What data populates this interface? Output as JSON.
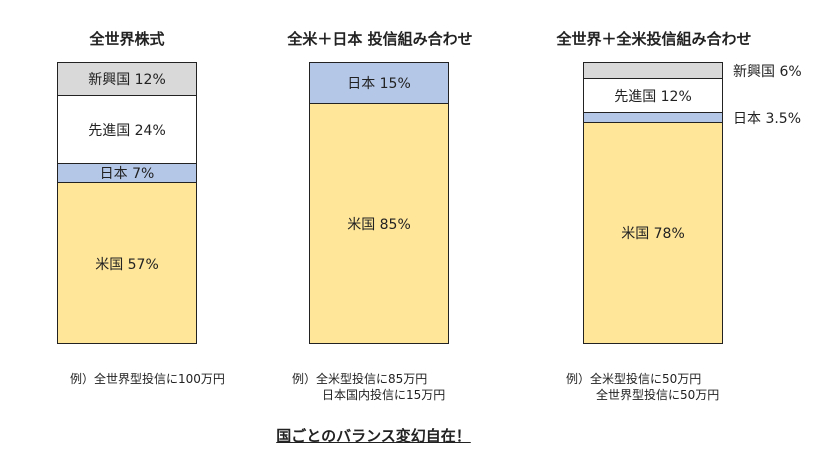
{
  "chart_data": [
    {
      "type": "bar",
      "title": "全世界株式",
      "stacked": true,
      "unit": "%",
      "series": [
        {
          "name": "米国",
          "value": 57,
          "label": "米国 57%",
          "color": "#ffe699"
        },
        {
          "name": "日本",
          "value": 7,
          "label": "日本 7%",
          "color": "#b4c7e7"
        },
        {
          "name": "先進国",
          "value": 24,
          "label": "先進国 24%",
          "color": "#ffffff"
        },
        {
          "name": "新興国",
          "value": 12,
          "label": "新興国 12%",
          "color": "#d9d9d9"
        }
      ],
      "example": [
        "例）全世界型投信に100万円"
      ]
    },
    {
      "type": "bar",
      "title": "全米＋日本 投信組み合わせ",
      "stacked": true,
      "unit": "%",
      "series": [
        {
          "name": "米国",
          "value": 85,
          "label": "米国 85%",
          "color": "#ffe699"
        },
        {
          "name": "日本",
          "value": 15,
          "label": "日本 15%",
          "color": "#b4c7e7"
        }
      ],
      "example": [
        "例）全米型投信に85万円",
        "日本国内投信に15万円"
      ]
    },
    {
      "type": "bar",
      "title": "全世界＋全米投信組み合わせ",
      "stacked": true,
      "unit": "%",
      "series": [
        {
          "name": "米国",
          "value": 78,
          "label": "米国 78%",
          "color": "#ffe699"
        },
        {
          "name": "日本",
          "value": 3.5,
          "label": "日本 3.5%",
          "color": "#b4c7e7",
          "outside": true
        },
        {
          "name": "先進国",
          "value": 12,
          "label": "先進国 12%",
          "color": "#ffffff"
        },
        {
          "name": "新興国",
          "value": 6,
          "label": "新興国 6%",
          "color": "#d9d9d9",
          "outside": true
        }
      ],
      "example": [
        "例）全米型投信に50万円",
        "全世界型投信に50万円"
      ]
    }
  ],
  "footer": "国ごとのバランス変幻自在！"
}
